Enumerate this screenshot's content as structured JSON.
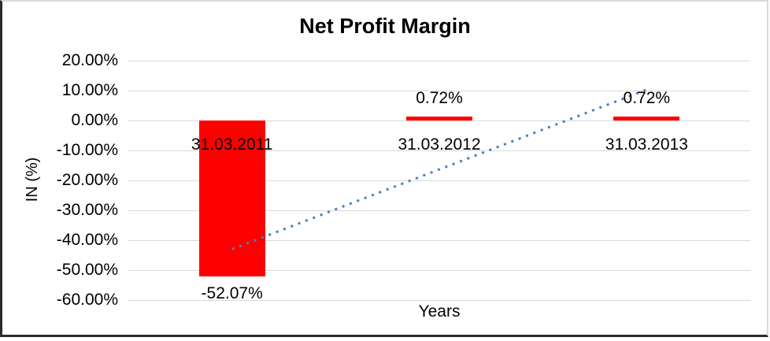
{
  "chart_data": {
    "type": "bar",
    "title": "Net Profit Margin",
    "xlabel": "Years",
    "ylabel": "IN (%)",
    "categories": [
      "31.03.2011",
      "31.03.2012",
      "31.03.2013"
    ],
    "values": [
      -52.07,
      0.72,
      0.72
    ],
    "data_labels": [
      "-52.07%",
      "0.72%",
      "0.72%"
    ],
    "ylim": [
      -60,
      20
    ],
    "yticks": [
      {
        "value": 20,
        "label": "20.00%"
      },
      {
        "value": 10,
        "label": "10.00%"
      },
      {
        "value": 0,
        "label": "0.00%"
      },
      {
        "value": -10,
        "label": "-10.00%"
      },
      {
        "value": -20,
        "label": "-20.00%"
      },
      {
        "value": -30,
        "label": "-30.00%"
      },
      {
        "value": -40,
        "label": "-40.00%"
      },
      {
        "value": -50,
        "label": "-50.00%"
      },
      {
        "value": -60,
        "label": "-60.00%"
      }
    ],
    "grid": true,
    "legend": "none",
    "bar_color": "#ff0000",
    "gridline_color": "#d9d9d9",
    "text_color": "#000000",
    "trendline": {
      "type": "linear",
      "style": "dotted",
      "color": "#4a7ebb",
      "from_category": "31.03.2011",
      "to_category": "31.03.2013",
      "start_value": -43.0,
      "end_value": 10.3
    }
  }
}
